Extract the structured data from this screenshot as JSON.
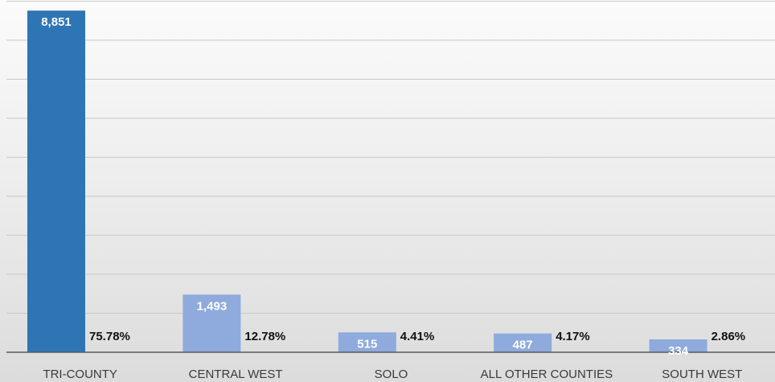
{
  "chart_data": {
    "type": "bar",
    "categories": [
      "TRI-COUNTY",
      "CENTRAL WEST",
      "SOLO",
      "ALL OTHER COUNTIES",
      "SOUTH WEST"
    ],
    "values": [
      8851,
      1493,
      515,
      487,
      334
    ],
    "value_labels": [
      "8,851",
      "1,493",
      "515",
      "487",
      "334"
    ],
    "percent_labels": [
      "75.78%",
      "12.78%",
      "4.41%",
      "4.17%",
      "2.86%"
    ],
    "colors": [
      "#2e75b6",
      "#8faadc",
      "#8faadc",
      "#8faadc",
      "#8faadc"
    ],
    "ylim": [
      0,
      9000
    ],
    "grid": true,
    "title": "",
    "xlabel": "",
    "ylabel": ""
  }
}
